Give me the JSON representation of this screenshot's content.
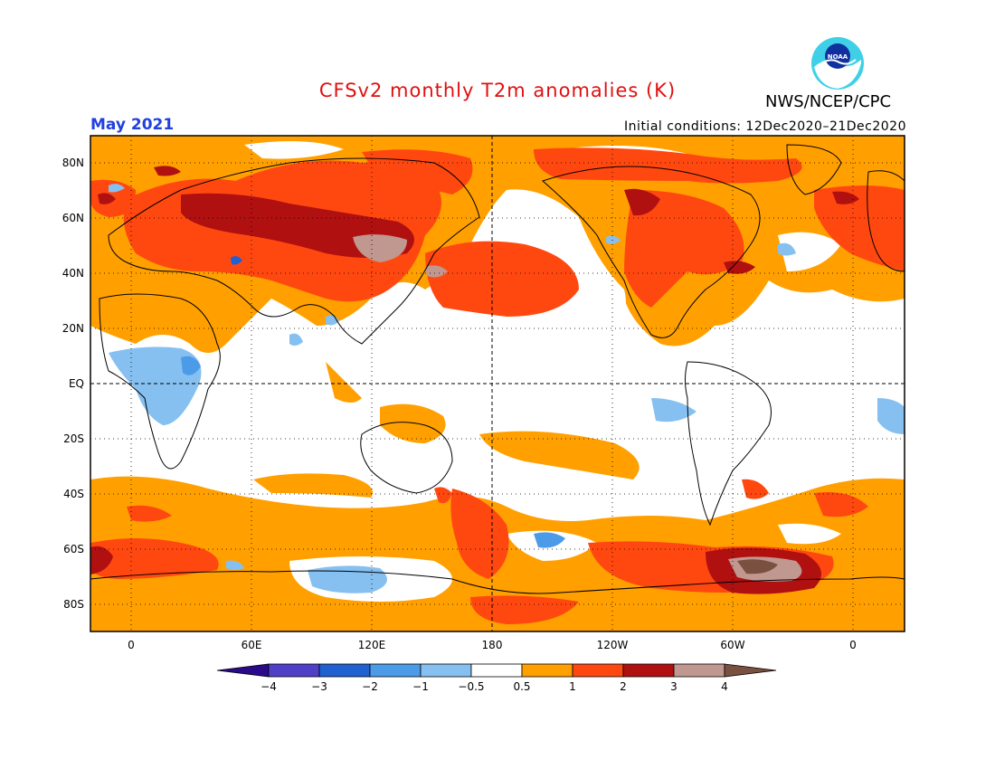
{
  "header": {
    "title": "CFSv2 monthly T2m anomalies (K)",
    "title_color": "#e01010",
    "organization": "NWS/NCEP/CPC",
    "period": "May 2021",
    "period_color": "#2040e0",
    "initial_conditions": "Initial conditions: 12Dec2020–21Dec2020",
    "logo_icon": "noaa-logo-icon"
  },
  "map": {
    "lat_labels": [
      "80N",
      "60N",
      "40N",
      "20N",
      "EQ",
      "20S",
      "40S",
      "60S",
      "80S"
    ],
    "lon_labels": [
      "0",
      "60E",
      "120E",
      "180",
      "120W",
      "60W",
      "0"
    ],
    "grid_lines": "dotted"
  },
  "colorbar": {
    "labels": [
      "−4",
      "−3",
      "−2",
      "−1",
      "−0.5",
      "0.5",
      "1",
      "2",
      "3",
      "4"
    ],
    "colors": [
      "#2a0a8a",
      "#5040c8",
      "#2060d0",
      "#4c9be8",
      "#86c0f0",
      "#ffffff",
      "#ffa000",
      "#ff4810",
      "#b01010",
      "#c09890",
      "#7a5040"
    ]
  }
}
